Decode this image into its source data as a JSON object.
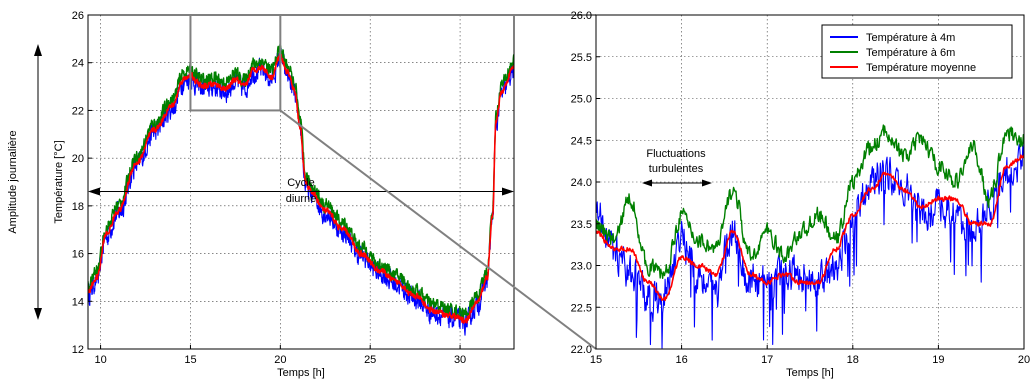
{
  "chart_data": [
    {
      "type": "line",
      "xlabel": "Temps [h]",
      "ylabel": "Température [°C]",
      "xlim": [
        9.3,
        33
      ],
      "ylim": [
        12,
        26
      ],
      "xticks": [
        10,
        15,
        20,
        25,
        30
      ],
      "yticks": [
        12,
        14,
        16,
        18,
        20,
        22,
        24,
        26
      ],
      "grid": true,
      "series": [
        {
          "name": "Température à 4m",
          "color": "#0000ff",
          "noise": 0.45,
          "offset": -0.1,
          "x": [
            9.3,
            9.8,
            10.3,
            11.0,
            12.0,
            13.0,
            14.0,
            14.6,
            15.0,
            15.3,
            15.7,
            16.3,
            17.0,
            17.5,
            18.0,
            18.5,
            19.0,
            19.5,
            20.0,
            20.4,
            20.8,
            21.1,
            21.4,
            21.7,
            22.5,
            23.5,
            24.5,
            25.5,
            26.5,
            27.5,
            28.5,
            29.5,
            30.3,
            31.0,
            31.5,
            31.8,
            32.0,
            32.3,
            33.0
          ],
          "y": [
            14.4,
            15.0,
            16.8,
            17.8,
            19.8,
            21.2,
            22.2,
            23.3,
            23.5,
            23.2,
            23.0,
            23.1,
            22.9,
            23.3,
            23.0,
            23.7,
            23.8,
            23.4,
            24.3,
            23.6,
            22.8,
            21.3,
            19.0,
            18.6,
            17.8,
            17.0,
            16.0,
            15.3,
            14.8,
            14.2,
            13.6,
            13.4,
            13.2,
            14.0,
            15.0,
            17.5,
            21.5,
            22.8,
            23.8
          ]
        },
        {
          "name": "Température à 6m",
          "color": "#008000",
          "noise": 0.3,
          "offset": 0.25,
          "x": [
            9.3,
            9.8,
            10.3,
            11.0,
            12.0,
            13.0,
            14.0,
            14.6,
            15.0,
            15.3,
            15.7,
            16.3,
            17.0,
            17.5,
            18.0,
            18.5,
            19.0,
            19.5,
            20.0,
            20.4,
            20.8,
            21.1,
            21.4,
            21.7,
            22.5,
            23.5,
            24.5,
            25.5,
            26.5,
            27.5,
            28.5,
            29.5,
            30.3,
            31.0,
            31.5,
            31.8,
            32.0,
            32.3,
            33.0
          ],
          "y": [
            14.4,
            15.0,
            16.8,
            17.8,
            19.8,
            21.2,
            22.2,
            23.3,
            23.5,
            23.2,
            23.0,
            23.1,
            22.9,
            23.3,
            23.0,
            23.7,
            23.8,
            23.4,
            24.3,
            23.6,
            22.8,
            21.3,
            19.0,
            18.6,
            17.8,
            17.0,
            16.0,
            15.3,
            14.8,
            14.2,
            13.6,
            13.4,
            13.2,
            14.0,
            15.0,
            17.5,
            21.5,
            22.8,
            23.8
          ]
        },
        {
          "name": "Température moyenne",
          "color": "#ff0000",
          "noise": 0.12,
          "offset": 0.0,
          "x": [
            9.3,
            9.8,
            10.3,
            11.0,
            12.0,
            13.0,
            14.0,
            14.6,
            15.0,
            15.3,
            15.7,
            16.3,
            17.0,
            17.5,
            18.0,
            18.5,
            19.0,
            19.5,
            20.0,
            20.4,
            20.8,
            21.1,
            21.4,
            21.7,
            22.5,
            23.5,
            24.5,
            25.5,
            26.5,
            27.5,
            28.5,
            29.5,
            30.3,
            31.0,
            31.5,
            31.8,
            32.0,
            32.3,
            33.0
          ],
          "y": [
            14.4,
            15.0,
            16.8,
            17.8,
            19.8,
            21.2,
            22.2,
            23.3,
            23.5,
            23.2,
            23.0,
            23.1,
            22.9,
            23.3,
            23.0,
            23.7,
            23.8,
            23.4,
            24.3,
            23.6,
            22.8,
            21.3,
            19.0,
            18.6,
            17.8,
            17.0,
            16.0,
            15.3,
            14.8,
            14.2,
            13.6,
            13.4,
            13.2,
            14.0,
            15.0,
            17.5,
            21.5,
            22.8,
            23.8
          ]
        }
      ],
      "zoom_box": {
        "x": [
          15,
          20
        ],
        "y": [
          22,
          26
        ]
      },
      "annotations": [
        {
          "text_lines": [
            "Cycle",
            "diurne"
          ],
          "arrow": "horizontal",
          "y": 18.6
        },
        {
          "text": "Amplitude journalière",
          "arrow": "vertical"
        }
      ]
    },
    {
      "type": "line",
      "xlabel": "Temps [h]",
      "ylabel": "",
      "xlim": [
        15,
        20
      ],
      "ylim": [
        22,
        26
      ],
      "xticks": [
        15,
        16,
        17,
        18,
        19,
        20
      ],
      "yticks": [
        22.0,
        22.5,
        23.0,
        23.5,
        24.0,
        24.5,
        25.0,
        25.5,
        26.0
      ],
      "ytick_labels": [
        "22.0",
        "22.5",
        "23.0",
        "23.5",
        "24.0",
        "24.5",
        "25.0",
        "25.5",
        "26.0"
      ],
      "grid": true,
      "legend": "top-right",
      "series": [
        {
          "name": "Température à 4m",
          "color": "#0000ff",
          "x": [
            15.0,
            15.2,
            15.4,
            15.6,
            15.8,
            16.0,
            16.2,
            16.4,
            16.6,
            16.8,
            17.0,
            17.2,
            17.4,
            17.6,
            17.8,
            18.0,
            18.2,
            18.4,
            18.6,
            18.8,
            19.0,
            19.2,
            19.4,
            19.6,
            19.8,
            20.0
          ],
          "y": [
            23.6,
            23.2,
            22.9,
            22.6,
            22.7,
            23.3,
            22.9,
            22.7,
            23.4,
            22.8,
            22.8,
            22.9,
            22.9,
            22.8,
            23.0,
            23.5,
            24.0,
            24.1,
            23.9,
            23.6,
            23.7,
            23.6,
            23.4,
            23.7,
            24.1,
            24.3
          ]
        },
        {
          "name": "Température à 6m",
          "color": "#008000",
          "x": [
            15.0,
            15.2,
            15.4,
            15.6,
            15.8,
            16.0,
            16.2,
            16.4,
            16.6,
            16.8,
            17.0,
            17.2,
            17.4,
            17.6,
            17.8,
            18.0,
            18.2,
            18.4,
            18.6,
            18.8,
            19.0,
            19.2,
            19.4,
            19.6,
            19.8,
            20.0
          ],
          "y": [
            23.5,
            23.3,
            23.8,
            23.0,
            22.9,
            23.6,
            23.3,
            23.2,
            23.9,
            23.1,
            23.4,
            23.1,
            23.4,
            23.6,
            23.3,
            24.0,
            24.4,
            24.6,
            24.3,
            24.5,
            24.2,
            24.0,
            24.4,
            23.8,
            24.6,
            24.5
          ]
        },
        {
          "name": "Température moyenne",
          "color": "#ff0000",
          "x": [
            15.0,
            15.2,
            15.4,
            15.6,
            15.8,
            16.0,
            16.2,
            16.4,
            16.6,
            16.8,
            17.0,
            17.2,
            17.4,
            17.6,
            17.8,
            18.0,
            18.2,
            18.4,
            18.6,
            18.8,
            19.0,
            19.2,
            19.4,
            19.6,
            19.8,
            20.0
          ],
          "y": [
            23.4,
            23.2,
            23.2,
            22.8,
            22.6,
            23.1,
            23.0,
            22.9,
            23.4,
            22.9,
            22.8,
            22.9,
            22.8,
            22.8,
            23.2,
            23.6,
            23.9,
            24.1,
            23.9,
            23.7,
            23.8,
            23.8,
            23.5,
            23.5,
            24.2,
            24.3
          ]
        }
      ],
      "annotations": [
        {
          "text_lines": [
            "Fluctuations",
            "turbulentes"
          ],
          "arrow": "horizontal"
        }
      ]
    }
  ]
}
